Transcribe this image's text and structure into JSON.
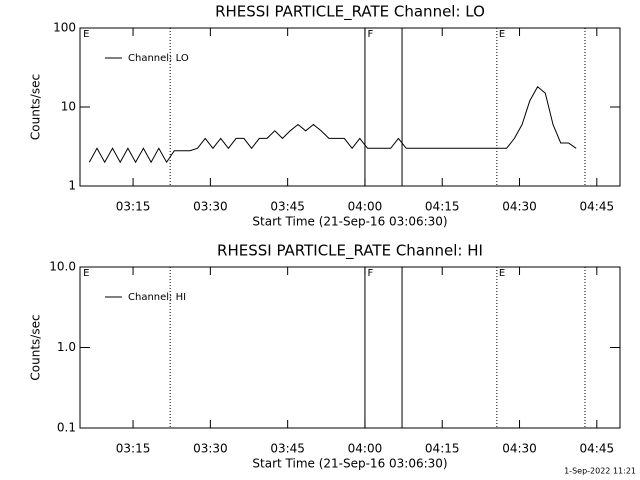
{
  "chart_data": [
    {
      "type": "line",
      "title": "RHESSI PARTICLE_RATE Channel: LO",
      "xlabel": "Start Time (21-Sep-16 03:06:30)",
      "ylabel": "Counts/sec",
      "ylog": true,
      "ylim": [
        1,
        100
      ],
      "yticks": [
        1,
        10,
        100
      ],
      "xlim": [
        4.7,
        109.5
      ],
      "xticks": [
        {
          "value": 15,
          "label": "03:15"
        },
        {
          "value": 30,
          "label": "03:30"
        },
        {
          "value": 45,
          "label": "03:45"
        },
        {
          "value": 60,
          "label": "04:00"
        },
        {
          "value": 75,
          "label": "04:15"
        },
        {
          "value": 90,
          "label": "04:30"
        },
        {
          "value": 105,
          "label": "04:45"
        }
      ],
      "vlines": [
        {
          "x": 22.2,
          "dashed": true
        },
        {
          "x": 60,
          "dashed": false
        },
        {
          "x": 67.2,
          "dashed": false
        },
        {
          "x": 85.6,
          "dashed": true
        },
        {
          "x": 102.7,
          "dashed": true
        }
      ],
      "annotations": [
        {
          "text": "E",
          "x": 5.3
        },
        {
          "text": "F",
          "x": 60.5
        },
        {
          "text": "E",
          "x": 86.0
        }
      ],
      "series": [
        {
          "name": "Channel: LO",
          "color": "#000000",
          "x": [
            6.5,
            8,
            9.5,
            11,
            12.5,
            14,
            15.5,
            17,
            18.5,
            20,
            21.5,
            23,
            24.5,
            26,
            27.5,
            29,
            30.5,
            32,
            33.5,
            35,
            36.5,
            38,
            39.5,
            41,
            42.5,
            44,
            45.5,
            47,
            48.5,
            50,
            51.5,
            53,
            54.5,
            56,
            57.5,
            59,
            60.5,
            62,
            63.5,
            65,
            66.5,
            68,
            69.5,
            71,
            72.5,
            74,
            75.5,
            77,
            78.5,
            80,
            81.5,
            83,
            84.5,
            86,
            87.5,
            89,
            90.5,
            92,
            93.5,
            95,
            96.5,
            98,
            99.5,
            101
          ],
          "values": [
            2,
            3,
            2,
            3,
            2,
            3,
            2,
            3,
            2,
            3,
            2,
            2.8,
            2.8,
            2.8,
            3,
            4,
            3,
            4,
            3,
            4,
            4,
            3,
            4,
            4,
            5,
            4,
            5,
            6,
            5,
            6,
            5,
            4,
            4,
            4,
            3,
            4,
            3,
            3,
            3,
            3,
            4,
            3,
            3,
            3,
            3,
            3,
            3,
            3,
            3,
            3,
            3,
            3,
            3,
            3,
            3,
            4,
            6,
            12,
            18,
            15,
            6,
            3.5,
            3.5,
            3
          ]
        }
      ]
    },
    {
      "type": "line",
      "title": "RHESSI PARTICLE_RATE Channel: HI",
      "xlabel": "Start Time (21-Sep-16 03:06:30)",
      "ylabel": "Counts/sec",
      "ylog": true,
      "ylim": [
        0.1,
        10
      ],
      "yticks": [
        {
          "value": 0.1,
          "label": "0.1"
        },
        {
          "value": 1,
          "label": "1.0"
        },
        {
          "value": 10,
          "label": "10.0"
        }
      ],
      "xlim": [
        4.7,
        109.5
      ],
      "xticks": [
        {
          "value": 15,
          "label": "03:15"
        },
        {
          "value": 30,
          "label": "03:30"
        },
        {
          "value": 45,
          "label": "03:45"
        },
        {
          "value": 60,
          "label": "04:00"
        },
        {
          "value": 75,
          "label": "04:15"
        },
        {
          "value": 90,
          "label": "04:30"
        },
        {
          "value": 105,
          "label": "04:45"
        }
      ],
      "vlines": [
        {
          "x": 22.2,
          "dashed": true
        },
        {
          "x": 60,
          "dashed": false
        },
        {
          "x": 67.2,
          "dashed": false
        },
        {
          "x": 85.6,
          "dashed": true
        },
        {
          "x": 102.7,
          "dashed": true
        }
      ],
      "annotations": [
        {
          "text": "E",
          "x": 5.3
        },
        {
          "text": "F",
          "x": 60.5
        },
        {
          "text": "E",
          "x": 86.0
        }
      ],
      "series": [
        {
          "name": "Channel: HI",
          "color": "#000000",
          "x": [],
          "values": []
        }
      ]
    }
  ],
  "footer": "1-Sep-2022 11:21"
}
